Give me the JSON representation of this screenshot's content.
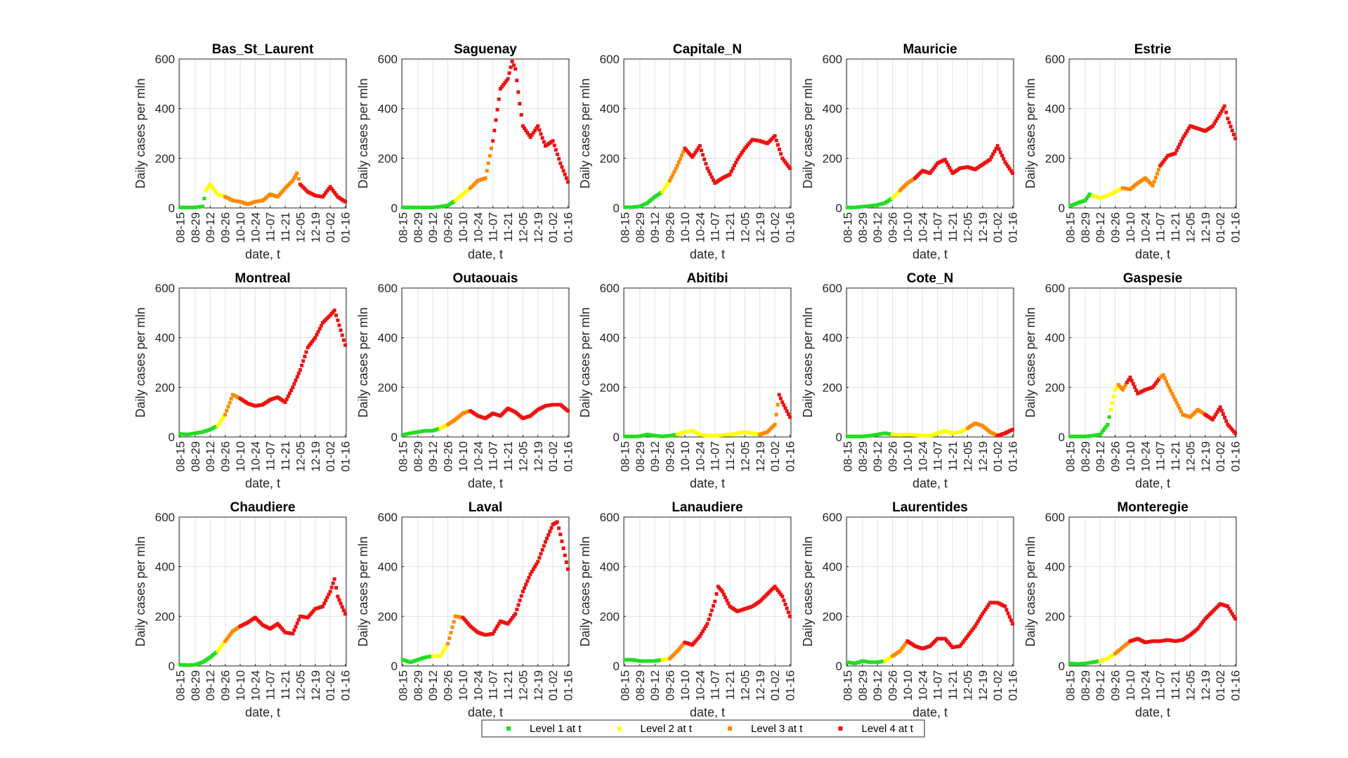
{
  "chart_data": {
    "type": "scatter",
    "xlabel": "date, t",
    "ylabel": "Daily cases per mln",
    "ylim": [
      0,
      600
    ],
    "yticks": [
      0,
      200,
      400,
      600
    ],
    "xticks": [
      "08-15",
      "08-29",
      "09-12",
      "09-26",
      "10-10",
      "10-24",
      "11-07",
      "11-21",
      "12-05",
      "12-19",
      "01-02",
      "01-16"
    ],
    "grid": true,
    "level_colors": {
      "1": "#22dd22",
      "2": "#ffff00",
      "3": "#ff8800",
      "4": "#ee1111"
    },
    "legend": {
      "placement": "bottom-center",
      "entries": [
        {
          "label": "Level 1 at t",
          "level": 1
        },
        {
          "label": "Level 2 at t",
          "level": 2
        },
        {
          "label": "Level 3 at t",
          "level": 3
        },
        {
          "label": "Level 4 at t",
          "level": 4
        }
      ]
    },
    "panels": [
      {
        "title": "Bas_St_Laurent",
        "x": [
          "08-15",
          "08-22",
          "08-29",
          "09-05",
          "09-08",
          "09-12",
          "09-19",
          "09-26",
          "10-03",
          "10-10",
          "10-17",
          "10-24",
          "10-31",
          "11-07",
          "11-14",
          "11-21",
          "11-28",
          "12-02",
          "12-05",
          "12-12",
          "12-19",
          "12-26",
          "01-02",
          "01-09",
          "01-16"
        ],
        "y": [
          2,
          2,
          2,
          6,
          70,
          95,
          55,
          45,
          30,
          25,
          15,
          25,
          30,
          55,
          45,
          80,
          110,
          140,
          95,
          65,
          50,
          45,
          85,
          45,
          25
        ],
        "level": [
          1,
          1,
          1,
          1,
          2,
          2,
          2,
          3,
          3,
          3,
          3,
          3,
          3,
          3,
          3,
          3,
          3,
          3,
          4,
          4,
          4,
          4,
          4,
          4,
          4
        ]
      },
      {
        "title": "Saguenay",
        "x": [
          "08-15",
          "08-22",
          "08-29",
          "09-05",
          "09-12",
          "09-19",
          "09-26",
          "10-03",
          "10-10",
          "10-17",
          "10-24",
          "10-31",
          "11-07",
          "11-14",
          "11-21",
          "11-25",
          "11-28",
          "12-02",
          "12-05",
          "12-12",
          "12-19",
          "12-26",
          "01-02",
          "01-09",
          "01-16"
        ],
        "y": [
          2,
          2,
          2,
          2,
          2,
          5,
          10,
          30,
          55,
          80,
          110,
          120,
          270,
          480,
          520,
          590,
          560,
          420,
          330,
          285,
          330,
          250,
          270,
          180,
          105
        ],
        "level": [
          1,
          1,
          1,
          1,
          1,
          1,
          1,
          2,
          2,
          3,
          3,
          3,
          4,
          4,
          4,
          4,
          4,
          4,
          4,
          4,
          4,
          4,
          4,
          4,
          4
        ]
      },
      {
        "title": "Capitale_N",
        "x": [
          "08-15",
          "08-22",
          "08-29",
          "09-05",
          "09-12",
          "09-19",
          "09-26",
          "10-03",
          "10-10",
          "10-17",
          "10-24",
          "10-31",
          "11-07",
          "11-14",
          "11-21",
          "11-28",
          "12-05",
          "12-12",
          "12-19",
          "12-26",
          "01-02",
          "01-09",
          "01-16"
        ],
        "y": [
          3,
          3,
          6,
          20,
          45,
          65,
          110,
          170,
          240,
          205,
          250,
          160,
          100,
          120,
          135,
          195,
          240,
          275,
          270,
          260,
          290,
          200,
          160
        ],
        "level": [
          1,
          1,
          1,
          1,
          1,
          2,
          3,
          3,
          4,
          4,
          4,
          4,
          4,
          4,
          4,
          4,
          4,
          4,
          4,
          4,
          4,
          4,
          4
        ]
      },
      {
        "title": "Mauricie",
        "x": [
          "08-15",
          "08-22",
          "08-29",
          "09-05",
          "09-12",
          "09-19",
          "09-26",
          "10-03",
          "10-10",
          "10-17",
          "10-24",
          "10-31",
          "11-07",
          "11-14",
          "11-21",
          "11-28",
          "12-05",
          "12-12",
          "12-19",
          "12-26",
          "01-02",
          "01-09",
          "01-16"
        ],
        "y": [
          2,
          2,
          5,
          8,
          12,
          20,
          40,
          70,
          100,
          120,
          150,
          140,
          180,
          195,
          140,
          160,
          165,
          155,
          175,
          195,
          250,
          185,
          140
        ],
        "level": [
          1,
          1,
          1,
          1,
          1,
          1,
          2,
          3,
          3,
          4,
          4,
          4,
          4,
          4,
          4,
          4,
          4,
          4,
          4,
          4,
          4,
          4,
          4
        ]
      },
      {
        "title": "Estrie",
        "x": [
          "08-15",
          "08-22",
          "08-29",
          "09-02",
          "09-05",
          "09-12",
          "09-19",
          "09-26",
          "10-03",
          "10-10",
          "10-17",
          "10-24",
          "10-31",
          "11-07",
          "11-14",
          "11-21",
          "11-28",
          "12-05",
          "12-12",
          "12-19",
          "12-26",
          "01-02",
          "01-06",
          "01-09",
          "01-16"
        ],
        "y": [
          8,
          20,
          30,
          55,
          50,
          40,
          50,
          65,
          80,
          75,
          100,
          120,
          90,
          170,
          210,
          220,
          280,
          330,
          320,
          310,
          330,
          380,
          410,
          360,
          280
        ],
        "level": [
          1,
          1,
          1,
          1,
          2,
          2,
          2,
          2,
          3,
          3,
          3,
          3,
          3,
          4,
          4,
          4,
          4,
          4,
          4,
          4,
          4,
          4,
          4,
          4,
          4
        ]
      },
      {
        "title": "Montreal",
        "x": [
          "08-15",
          "08-22",
          "08-29",
          "09-05",
          "09-12",
          "09-19",
          "09-26",
          "10-03",
          "10-10",
          "10-17",
          "10-24",
          "10-31",
          "11-07",
          "11-14",
          "11-21",
          "11-28",
          "12-05",
          "12-12",
          "12-19",
          "12-26",
          "01-02",
          "01-06",
          "01-09",
          "01-16"
        ],
        "y": [
          12,
          10,
          15,
          20,
          30,
          45,
          90,
          170,
          155,
          135,
          125,
          130,
          150,
          160,
          140,
          200,
          270,
          360,
          400,
          460,
          490,
          510,
          470,
          370
        ],
        "level": [
          1,
          1,
          1,
          1,
          1,
          2,
          3,
          3,
          4,
          4,
          4,
          4,
          4,
          4,
          4,
          4,
          4,
          4,
          4,
          4,
          4,
          4,
          4,
          4
        ]
      },
      {
        "title": "Outaouais",
        "x": [
          "08-15",
          "08-22",
          "08-29",
          "09-05",
          "09-12",
          "09-19",
          "09-26",
          "10-03",
          "10-10",
          "10-17",
          "10-24",
          "10-31",
          "11-07",
          "11-14",
          "11-21",
          "11-28",
          "12-05",
          "12-12",
          "12-19",
          "12-26",
          "01-02",
          "01-09",
          "01-16"
        ],
        "y": [
          8,
          15,
          20,
          25,
          25,
          35,
          50,
          70,
          95,
          105,
          85,
          75,
          95,
          85,
          115,
          100,
          75,
          85,
          110,
          125,
          130,
          130,
          105
        ],
        "level": [
          1,
          1,
          1,
          1,
          1,
          2,
          3,
          3,
          3,
          4,
          4,
          4,
          4,
          4,
          4,
          4,
          4,
          4,
          4,
          4,
          4,
          4,
          4
        ]
      },
      {
        "title": "Abitibi",
        "x": [
          "08-15",
          "08-22",
          "08-29",
          "09-05",
          "09-12",
          "09-19",
          "09-26",
          "10-03",
          "10-10",
          "10-17",
          "10-24",
          "10-31",
          "11-07",
          "11-14",
          "11-21",
          "11-28",
          "12-05",
          "12-12",
          "12-19",
          "12-26",
          "01-02",
          "01-06",
          "01-09",
          "01-16"
        ],
        "y": [
          2,
          2,
          3,
          10,
          5,
          2,
          5,
          10,
          20,
          25,
          10,
          5,
          5,
          8,
          10,
          15,
          20,
          15,
          10,
          20,
          50,
          170,
          140,
          80
        ],
        "level": [
          1,
          1,
          1,
          1,
          1,
          1,
          1,
          2,
          2,
          2,
          2,
          2,
          2,
          2,
          2,
          2,
          2,
          2,
          3,
          3,
          3,
          4,
          4,
          4
        ]
      },
      {
        "title": "Cote_N",
        "x": [
          "08-15",
          "08-22",
          "08-29",
          "09-05",
          "09-12",
          "09-19",
          "09-26",
          "10-03",
          "10-10",
          "10-17",
          "10-24",
          "10-31",
          "11-07",
          "11-14",
          "11-21",
          "11-28",
          "12-05",
          "12-12",
          "12-19",
          "12-26",
          "01-02",
          "01-09",
          "01-16"
        ],
        "y": [
          2,
          2,
          2,
          5,
          10,
          15,
          10,
          8,
          10,
          8,
          5,
          5,
          15,
          25,
          15,
          20,
          35,
          55,
          45,
          20,
          5,
          15,
          30
        ],
        "level": [
          1,
          1,
          1,
          1,
          1,
          1,
          2,
          2,
          2,
          2,
          2,
          2,
          2,
          2,
          2,
          2,
          3,
          3,
          3,
          3,
          4,
          4,
          4
        ]
      },
      {
        "title": "Gaspesie",
        "x": [
          "08-15",
          "08-22",
          "08-29",
          "09-05",
          "09-12",
          "09-19",
          "09-22",
          "09-26",
          "09-29",
          "10-03",
          "10-07",
          "10-10",
          "10-17",
          "10-24",
          "10-31",
          "11-07",
          "11-10",
          "11-14",
          "11-21",
          "11-28",
          "12-05",
          "12-12",
          "12-19",
          "12-26",
          "01-02",
          "01-09",
          "01-16"
        ],
        "y": [
          2,
          2,
          2,
          5,
          10,
          50,
          110,
          190,
          210,
          190,
          220,
          240,
          175,
          190,
          200,
          240,
          250,
          210,
          150,
          90,
          80,
          110,
          90,
          70,
          120,
          50,
          15
        ],
        "level": [
          1,
          1,
          1,
          1,
          1,
          1,
          2,
          2,
          3,
          3,
          4,
          4,
          4,
          4,
          4,
          3,
          3,
          3,
          3,
          3,
          3,
          3,
          4,
          4,
          4,
          4,
          4
        ]
      },
      {
        "title": "Chaudiere",
        "x": [
          "08-15",
          "08-22",
          "08-29",
          "09-05",
          "09-12",
          "09-19",
          "09-26",
          "10-03",
          "10-10",
          "10-17",
          "10-24",
          "10-31",
          "11-07",
          "11-14",
          "11-21",
          "11-28",
          "12-05",
          "12-12",
          "12-19",
          "12-26",
          "01-02",
          "01-06",
          "01-09",
          "01-16"
        ],
        "y": [
          5,
          3,
          5,
          15,
          35,
          60,
          100,
          140,
          160,
          175,
          195,
          165,
          150,
          170,
          135,
          130,
          200,
          195,
          230,
          240,
          300,
          350,
          280,
          210
        ],
        "level": [
          1,
          1,
          1,
          1,
          1,
          2,
          3,
          3,
          4,
          4,
          4,
          4,
          4,
          4,
          4,
          4,
          4,
          4,
          4,
          4,
          4,
          4,
          4,
          4
        ]
      },
      {
        "title": "Laval",
        "x": [
          "08-15",
          "08-22",
          "08-29",
          "09-05",
          "09-12",
          "09-19",
          "09-26",
          "10-03",
          "10-10",
          "10-17",
          "10-24",
          "10-31",
          "11-07",
          "11-14",
          "11-21",
          "11-28",
          "12-05",
          "12-12",
          "12-19",
          "12-26",
          "01-02",
          "01-06",
          "01-09",
          "01-16"
        ],
        "y": [
          25,
          15,
          25,
          35,
          40,
          40,
          90,
          200,
          195,
          160,
          135,
          125,
          130,
          180,
          170,
          210,
          300,
          370,
          420,
          500,
          570,
          580,
          530,
          390
        ],
        "level": [
          1,
          1,
          1,
          1,
          2,
          2,
          3,
          3,
          4,
          4,
          4,
          4,
          4,
          4,
          4,
          4,
          4,
          4,
          4,
          4,
          4,
          4,
          4,
          4
        ]
      },
      {
        "title": "Lanaudiere",
        "x": [
          "08-15",
          "08-22",
          "08-29",
          "09-05",
          "09-12",
          "09-19",
          "09-26",
          "10-03",
          "10-10",
          "10-17",
          "10-24",
          "10-31",
          "11-07",
          "11-10",
          "11-14",
          "11-21",
          "11-28",
          "12-05",
          "12-12",
          "12-19",
          "12-26",
          "01-02",
          "01-09",
          "01-16"
        ],
        "y": [
          25,
          25,
          20,
          20,
          20,
          25,
          30,
          60,
          95,
          85,
          120,
          170,
          260,
          320,
          300,
          240,
          220,
          230,
          240,
          260,
          290,
          320,
          280,
          200
        ],
        "level": [
          1,
          1,
          1,
          1,
          1,
          2,
          3,
          3,
          4,
          4,
          4,
          4,
          4,
          4,
          4,
          4,
          4,
          4,
          4,
          4,
          4,
          4,
          4,
          4
        ]
      },
      {
        "title": "Laurentides",
        "x": [
          "08-15",
          "08-22",
          "08-29",
          "09-05",
          "09-12",
          "09-19",
          "09-26",
          "10-03",
          "10-10",
          "10-17",
          "10-24",
          "10-31",
          "11-07",
          "11-14",
          "11-21",
          "11-28",
          "12-05",
          "12-12",
          "12-19",
          "12-26",
          "01-02",
          "01-09",
          "01-16"
        ],
        "y": [
          15,
          10,
          20,
          15,
          15,
          20,
          40,
          60,
          100,
          80,
          70,
          80,
          110,
          110,
          75,
          80,
          120,
          160,
          210,
          255,
          255,
          240,
          170
        ],
        "level": [
          1,
          1,
          1,
          1,
          1,
          2,
          3,
          3,
          4,
          4,
          4,
          4,
          4,
          4,
          4,
          4,
          4,
          4,
          4,
          4,
          4,
          4,
          4
        ]
      },
      {
        "title": "Monteregie",
        "x": [
          "08-15",
          "08-22",
          "08-29",
          "09-05",
          "09-12",
          "09-19",
          "09-26",
          "10-03",
          "10-10",
          "10-17",
          "10-24",
          "10-31",
          "11-07",
          "11-14",
          "11-21",
          "11-28",
          "12-05",
          "12-12",
          "12-19",
          "12-26",
          "01-02",
          "01-09",
          "01-16"
        ],
        "y": [
          10,
          8,
          10,
          15,
          20,
          30,
          50,
          75,
          100,
          110,
          95,
          100,
          100,
          105,
          100,
          105,
          125,
          150,
          190,
          220,
          250,
          240,
          190
        ],
        "level": [
          1,
          1,
          1,
          1,
          2,
          2,
          3,
          3,
          4,
          4,
          4,
          4,
          4,
          4,
          4,
          4,
          4,
          4,
          4,
          4,
          4,
          4,
          4
        ]
      }
    ]
  }
}
